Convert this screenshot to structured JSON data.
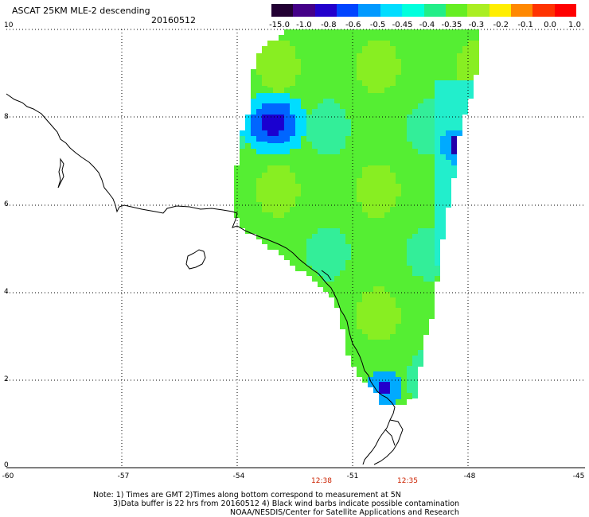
{
  "header": {
    "title": "ASCAT 25KM MLE-2 descending",
    "date": "20160512"
  },
  "colorbar": {
    "labels": [
      "-15.0",
      "-1.0",
      "-0.8",
      "-0.6",
      "-0.5",
      "-0.45",
      "-0.4",
      "-0.35",
      "-0.3",
      "-0.2",
      "-0.1",
      "0.0",
      "1.0"
    ],
    "colors": [
      "#220033",
      "#440088",
      "#2200cc",
      "#0044ff",
      "#0099ff",
      "#00ddff",
      "#00ffdd",
      "#22ee88",
      "#66ee22",
      "#aaee22",
      "#ffee00",
      "#ff8800",
      "#ff3300",
      "#ff0000"
    ]
  },
  "axes": {
    "lat_labels": [
      "10",
      "8",
      "6",
      "4",
      "2",
      "0"
    ],
    "lon_labels": [
      "-60",
      "-57",
      "-54",
      "-51",
      "-48",
      "-45"
    ]
  },
  "times": {
    "t1": "12:38",
    "t2": "12:35"
  },
  "notes": {
    "line1": "Note: 1) Times are GMT 2)Times along bottom correspond to measurement at 5N",
    "line2": "3)Data buffer is 22 hrs from 20160512 4) Black wind barbs indicate possible contamination",
    "line3": "NOAA/NESDIS/Center for Satellite Applications and Research"
  }
}
